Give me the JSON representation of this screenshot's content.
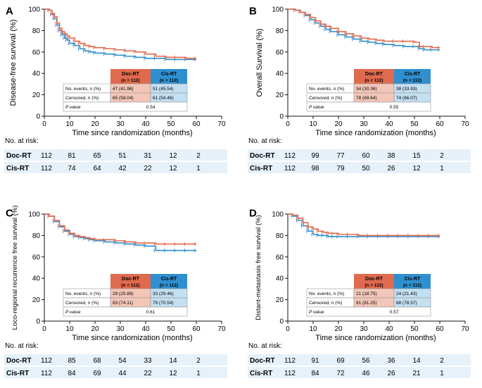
{
  "colors": {
    "doc": "#e06a4e",
    "cis": "#2f8fcf",
    "doc_fill": "#f3c6b8",
    "cis_fill": "#c3dff2",
    "risk_band": "#e6f1fa"
  },
  "chart_data": [
    {
      "type": "line",
      "label": "A",
      "ylabel": "Disease-free survival (%)",
      "xlabel": "Time since randomization (months)",
      "xlim": [
        0,
        70
      ],
      "ylim": [
        0,
        100
      ],
      "xticks": [
        0,
        10,
        20,
        30,
        40,
        50,
        60,
        70
      ],
      "yticks": [
        0,
        20,
        40,
        60,
        80,
        100
      ],
      "series": [
        {
          "name": "Doc-RT",
          "x": [
            0,
            2,
            3,
            4,
            5,
            6,
            7,
            8,
            9,
            10,
            12,
            14,
            16,
            18,
            20,
            24,
            28,
            32,
            36,
            40,
            44,
            48,
            52,
            56,
            60
          ],
          "y": [
            100,
            99,
            96,
            93,
            87,
            82,
            79,
            77,
            75,
            73,
            70,
            68,
            66,
            65,
            64,
            63,
            62,
            61,
            60,
            58,
            56,
            55,
            55,
            54,
            54
          ]
        },
        {
          "name": "Cis-RT",
          "x": [
            0,
            2,
            3,
            4,
            5,
            6,
            7,
            8,
            9,
            10,
            12,
            14,
            16,
            18,
            20,
            24,
            28,
            32,
            36,
            40,
            44,
            48,
            52,
            56,
            60
          ],
          "y": [
            100,
            99,
            95,
            91,
            85,
            80,
            76,
            73,
            71,
            68,
            66,
            63,
            61,
            60,
            59,
            58,
            57,
            56,
            55,
            54,
            54,
            53,
            53,
            53,
            53
          ]
        }
      ],
      "summary": {
        "col_headers": [
          "Doc-RT",
          "Cis-RT"
        ],
        "col_n": [
          "(n = 112)",
          "(n = 112)"
        ],
        "rows": [
          {
            "label": "No. events, n (%)",
            "doc": "47 (41.96)",
            "cis": "51 (45.54)"
          },
          {
            "label": "Censored, n (%)",
            "doc": "65 (58.04)",
            "cis": "61 (54.46)"
          }
        ],
        "p_label": "P value",
        "p_value": "0.54"
      },
      "risk": {
        "title": "No. at risk:",
        "rows": [
          {
            "name": "Doc-RT",
            "values": [
              112,
              81,
              65,
              51,
              31,
              12,
              2
            ]
          },
          {
            "name": "Cis-RT",
            "values": [
              112,
              74,
              64,
              42,
              22,
              12,
              1
            ]
          }
        ]
      }
    },
    {
      "type": "line",
      "label": "B",
      "ylabel": "Overall Survival (%)",
      "xlabel": "Time since randomization (months)",
      "xlim": [
        0,
        70
      ],
      "ylim": [
        0,
        100
      ],
      "xticks": [
        0,
        10,
        20,
        30,
        40,
        50,
        60,
        70
      ],
      "yticks": [
        0,
        20,
        40,
        60,
        80,
        100
      ],
      "series": [
        {
          "name": "Doc-RT",
          "x": [
            0,
            3,
            5,
            7,
            9,
            11,
            13,
            15,
            17,
            20,
            23,
            26,
            29,
            32,
            35,
            38,
            42,
            46,
            50,
            52,
            54,
            57,
            60
          ],
          "y": [
            100,
            99,
            97,
            95,
            92,
            89,
            86,
            84,
            82,
            79,
            77,
            75,
            73,
            72,
            71,
            70,
            70,
            70,
            69,
            65,
            65,
            64,
            64
          ]
        },
        {
          "name": "Cis-RT",
          "x": [
            0,
            3,
            5,
            7,
            9,
            11,
            13,
            15,
            17,
            20,
            23,
            26,
            29,
            32,
            35,
            38,
            42,
            46,
            50,
            52,
            54,
            57,
            60
          ],
          "y": [
            100,
            99,
            97,
            94,
            90,
            87,
            84,
            81,
            79,
            76,
            74,
            72,
            70,
            69,
            68,
            67,
            66,
            65,
            65,
            63,
            62,
            62,
            62
          ]
        }
      ],
      "summary": {
        "col_headers": [
          "Doc-RT",
          "Cis-RT"
        ],
        "col_n": [
          "(n = 112)",
          "(n = 112)"
        ],
        "rows": [
          {
            "label": "No. events, n (%)",
            "doc": "34 (30.36)",
            "cis": "38 (33.93)"
          },
          {
            "label": "Censored, n (%)",
            "doc": "78 (69.64)",
            "cis": "74 (66.07)"
          }
        ],
        "p_label": "P value",
        "p_value": "0.55"
      },
      "risk": {
        "title": "No. at risk:",
        "rows": [
          {
            "name": "Doc-RT",
            "values": [
              112,
              99,
              77,
              60,
              38,
              15,
              2
            ]
          },
          {
            "name": "Cis-RT",
            "values": [
              112,
              98,
              79,
              50,
              26,
              12,
              1
            ]
          }
        ]
      }
    },
    {
      "type": "line",
      "label": "C",
      "ylabel": "Loco-regional recurrence free survival (%)",
      "xlabel": "Time since randomization (months)",
      "xlim": [
        0,
        70
      ],
      "ylim": [
        0,
        100
      ],
      "xticks": [
        0,
        10,
        20,
        30,
        40,
        50,
        60,
        70
      ],
      "yticks": [
        0,
        20,
        40,
        60,
        80,
        100
      ],
      "series": [
        {
          "name": "Doc-RT",
          "x": [
            0,
            2,
            4,
            6,
            8,
            10,
            12,
            14,
            16,
            18,
            20,
            24,
            28,
            32,
            36,
            40,
            44,
            48,
            52,
            56,
            60
          ],
          "y": [
            100,
            98,
            94,
            89,
            85,
            82,
            80,
            79,
            78,
            77,
            76,
            76,
            75,
            74,
            73,
            73,
            72,
            72,
            72,
            72,
            72
          ]
        },
        {
          "name": "Cis-RT",
          "x": [
            0,
            2,
            4,
            6,
            8,
            10,
            12,
            14,
            16,
            18,
            20,
            24,
            28,
            32,
            36,
            40,
            44,
            48,
            52,
            56,
            60
          ],
          "y": [
            100,
            98,
            93,
            88,
            84,
            81,
            79,
            78,
            77,
            76,
            75,
            74,
            73,
            72,
            71,
            70,
            66,
            66,
            66,
            66,
            66
          ]
        }
      ],
      "summary": {
        "col_headers": [
          "Doc-RT",
          "Cis-RT"
        ],
        "col_n": [
          "(n = 112)",
          "(n = 112)"
        ],
        "rows": [
          {
            "label": "No. events, n (%)",
            "doc": "29 (25.89)",
            "cis": "33 (29.46)"
          },
          {
            "label": "Censored, n (%)",
            "doc": "83 (74.11)",
            "cis": "79 (70.54)"
          }
        ],
        "p_label": "P value",
        "p_value": "0.61"
      },
      "risk": {
        "title": "No. at risk:",
        "rows": [
          {
            "name": "Doc-RT",
            "values": [
              112,
              85,
              68,
              54,
              33,
              14,
              2
            ]
          },
          {
            "name": "Cis-RT",
            "values": [
              112,
              84,
              69,
              44,
              22,
              12,
              1
            ]
          }
        ]
      }
    },
    {
      "type": "line",
      "label": "D",
      "ylabel": "Distant-metastasis free survival (%)",
      "xlabel": "Time since randomization (months)",
      "xlim": [
        0,
        70
      ],
      "ylim": [
        0,
        100
      ],
      "xticks": [
        0,
        10,
        20,
        30,
        40,
        50,
        60,
        70
      ],
      "yticks": [
        0,
        20,
        40,
        60,
        80,
        100
      ],
      "series": [
        {
          "name": "Doc-RT",
          "x": [
            0,
            2,
            4,
            6,
            8,
            10,
            12,
            14,
            16,
            18,
            20,
            24,
            28,
            32,
            36,
            40,
            44,
            48,
            52,
            56,
            60
          ],
          "y": [
            100,
            99,
            96,
            92,
            88,
            86,
            84,
            83,
            82,
            82,
            81,
            81,
            80,
            80,
            80,
            80,
            80,
            80,
            80,
            80,
            80
          ]
        },
        {
          "name": "Cis-RT",
          "x": [
            0,
            2,
            4,
            6,
            8,
            10,
            12,
            14,
            16,
            18,
            20,
            24,
            28,
            32,
            36,
            40,
            44,
            48,
            52,
            56,
            60
          ],
          "y": [
            100,
            98,
            94,
            89,
            84,
            81,
            80,
            80,
            79,
            79,
            79,
            79,
            79,
            79,
            79,
            79,
            79,
            79,
            79,
            79,
            79
          ]
        }
      ],
      "summary": {
        "col_headers": [
          "Doc-RT",
          "Cis-RT"
        ],
        "col_n": [
          "(n = 112)",
          "(n = 112)"
        ],
        "rows": [
          {
            "label": "No. events, n (%)",
            "doc": "21 (18.75)",
            "cis": "24 (21.43)"
          },
          {
            "label": "Censored, n (%)",
            "doc": "91 (81.25)",
            "cis": "88 (78.57)"
          }
        ],
        "p_label": "P value",
        "p_value": "0.57"
      },
      "risk": {
        "title": "No. at risk:",
        "rows": [
          {
            "name": "Doc-RT",
            "values": [
              112,
              91,
              69,
              56,
              36,
              14,
              2
            ]
          },
          {
            "name": "Cis-RT",
            "values": [
              112,
              84,
              72,
              46,
              26,
              21,
              1
            ]
          }
        ]
      }
    }
  ]
}
